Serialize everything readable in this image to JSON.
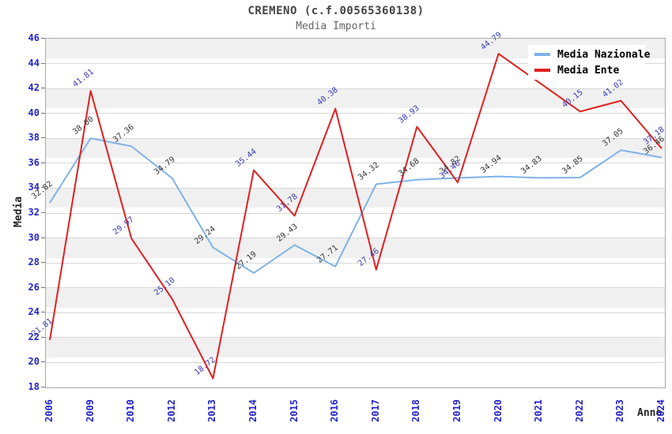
{
  "header": {
    "title": "CREMENO (c.f.00565360138)",
    "subtitle": "Media Importi"
  },
  "chart_data": {
    "type": "line",
    "title": "CREMENO (c.f.00565360138)",
    "subtitle": "Media Importi",
    "xlabel": "Anno",
    "ylabel": "Media",
    "ylim": [
      18,
      46
    ],
    "yticks": [
      18,
      20,
      22,
      24,
      26,
      28,
      30,
      32,
      34,
      36,
      38,
      40,
      42,
      44,
      46
    ],
    "grid": "horizontal",
    "legend_position": "top-right",
    "categories": [
      "2006",
      "2009",
      "2010",
      "2012",
      "2013",
      "2014",
      "2015",
      "2016",
      "2017",
      "2018",
      "2019",
      "2020",
      "2021",
      "2022",
      "2023",
      "2024"
    ],
    "series": [
      {
        "name": "Media Nazionale",
        "color": "#7fb3e8",
        "label_color": "#333333",
        "values": [
          32.82,
          38.0,
          37.36,
          34.79,
          29.24,
          27.19,
          29.43,
          27.71,
          34.32,
          34.68,
          34.82,
          34.94,
          34.83,
          34.85,
          37.05,
          36.46
        ]
      },
      {
        "name": "Media Ente",
        "color": "#e02020",
        "label_color": "#3a3ab2",
        "values": [
          21.81,
          41.81,
          29.97,
          25.1,
          18.72,
          35.44,
          31.78,
          40.38,
          27.46,
          38.93,
          34.46,
          44.79,
          null,
          40.15,
          41.02,
          37.18
        ]
      }
    ]
  },
  "colors": {
    "axis_tick_text": "#2323cc",
    "stripe": "#f0f0f0",
    "gridline": "#d8d8d8",
    "plot_border": "#aaaaaa",
    "title_text": "#444444",
    "subtitle_text": "#666666",
    "axis_label_text": "#222222",
    "legend_bg": "#ffffff"
  }
}
